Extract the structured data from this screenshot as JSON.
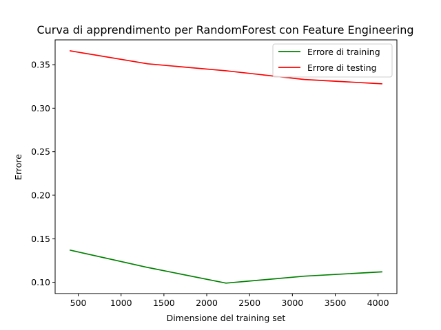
{
  "chart_data": {
    "type": "line",
    "title": "Curva di apprendimento per RandomForest con Feature Engineering",
    "xlabel": "Dimensione del training set",
    "ylabel": "Errore",
    "xlim": [
      230,
      4220
    ],
    "ylim": [
      0.087,
      0.3785
    ],
    "x": [
      400,
      1310,
      2225,
      3140,
      4050
    ],
    "x_ticks": [
      500,
      1000,
      1500,
      2000,
      2500,
      3000,
      3500,
      4000
    ],
    "x_tick_labels": [
      "500",
      "1000",
      "1500",
      "2000",
      "2500",
      "3000",
      "3500",
      "4000"
    ],
    "y_ticks": [
      0.1,
      0.15,
      0.2,
      0.25,
      0.3,
      0.35
    ],
    "y_tick_labels": [
      "0.10",
      "0.15",
      "0.20",
      "0.25",
      "0.30",
      "0.35"
    ],
    "grid": false,
    "legend_position": "top-right",
    "series": [
      {
        "name": "Errore di training",
        "color": "#008000",
        "values": [
          0.137,
          0.117,
          0.099,
          0.107,
          0.112
        ]
      },
      {
        "name": "Errore di testing",
        "color": "#ff0000",
        "values": [
          0.366,
          0.351,
          0.343,
          0.333,
          0.328
        ]
      }
    ]
  }
}
